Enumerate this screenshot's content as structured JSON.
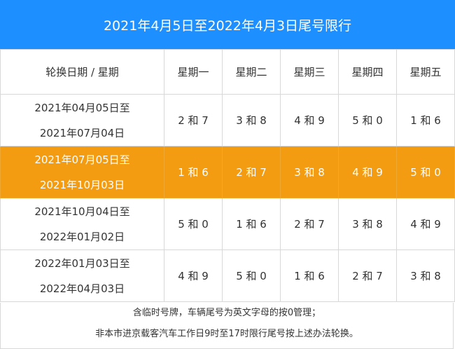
{
  "title": "2021年4月5日至2022年4月3日尾号限行",
  "header": {
    "date_col": "轮换日期 / 星期",
    "days": [
      "星期一",
      "星期二",
      "星期三",
      "星期四",
      "星期五"
    ]
  },
  "rows": [
    {
      "date_line1": "2021年04月05日至",
      "date_line2": "2021年07月04日",
      "cells": [
        "2 和 7",
        "3 和 8",
        "4 和 9",
        "5 和 0",
        "1 和 6"
      ]
    },
    {
      "date_line1": "2021年07月05日至",
      "date_line2": "2021年10月03日",
      "cells": [
        "1 和 6",
        "2 和 7",
        "3 和 8",
        "4 和 9",
        "5 和 0"
      ]
    },
    {
      "date_line1": "2021年10月04日至",
      "date_line2": "2022年01月02日",
      "cells": [
        "5 和 0",
        "1 和 6",
        "2 和 7",
        "3 和 8",
        "4 和 9"
      ]
    },
    {
      "date_line1": "2022年01月03日至",
      "date_line2": "2022年04月03日",
      "cells": [
        "4 和 9",
        "5 和 0",
        "1 和 6",
        "2 和 7",
        "3 和 8"
      ]
    }
  ],
  "notes": {
    "line1": "含临时号牌，车辆尾号为英文字母的按0管理；",
    "line2": "非本市进京载客汽车工作日9时至17时限行尾号按上述办法轮换。"
  },
  "colors": {
    "title_bg": "#1e8fff",
    "highlight_row": "#f39c12"
  }
}
